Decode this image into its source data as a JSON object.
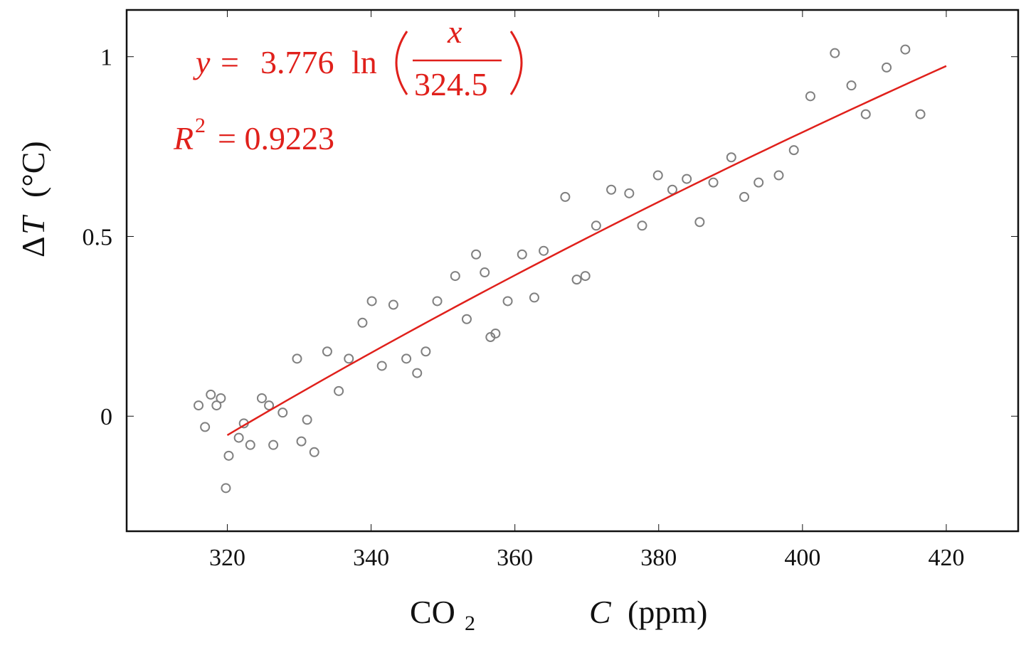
{
  "chart_data": {
    "type": "scatter",
    "xlabel": {
      "pre": "CO",
      "sub": "2",
      "var": "C",
      "unit": "(ppm)"
    },
    "ylabel": {
      "delta": "Δ",
      "var": "T",
      "unit": "(°C)"
    },
    "xlim": [
      306,
      430
    ],
    "ylim": [
      -0.32,
      1.13
    ],
    "xticks": [
      320,
      340,
      360,
      380,
      400,
      420
    ],
    "xtick_labels": [
      "320",
      "340",
      "360",
      "380",
      "400",
      "420"
    ],
    "yticks": [
      0,
      0.5,
      1
    ],
    "ytick_labels": [
      "0",
      "0.5",
      "1"
    ],
    "points": [
      [
        316.0,
        0.03
      ],
      [
        316.9,
        -0.03
      ],
      [
        317.7,
        0.06
      ],
      [
        318.5,
        0.03
      ],
      [
        319.1,
        0.05
      ],
      [
        319.8,
        -0.2
      ],
      [
        320.2,
        -0.11
      ],
      [
        321.6,
        -0.06
      ],
      [
        322.3,
        -0.02
      ],
      [
        323.2,
        -0.08
      ],
      [
        324.8,
        0.05
      ],
      [
        325.8,
        0.03
      ],
      [
        326.4,
        -0.08
      ],
      [
        327.7,
        0.01
      ],
      [
        329.7,
        0.16
      ],
      [
        330.3,
        -0.07
      ],
      [
        331.1,
        -0.01
      ],
      [
        332.1,
        -0.1
      ],
      [
        333.9,
        0.18
      ],
      [
        335.5,
        0.07
      ],
      [
        336.9,
        0.16
      ],
      [
        338.8,
        0.26
      ],
      [
        340.1,
        0.32
      ],
      [
        341.5,
        0.14
      ],
      [
        343.1,
        0.31
      ],
      [
        344.9,
        0.16
      ],
      [
        346.4,
        0.12
      ],
      [
        347.6,
        0.18
      ],
      [
        349.2,
        0.32
      ],
      [
        351.7,
        0.39
      ],
      [
        353.3,
        0.27
      ],
      [
        354.6,
        0.45
      ],
      [
        355.8,
        0.4
      ],
      [
        356.6,
        0.22
      ],
      [
        357.3,
        0.23
      ],
      [
        359.0,
        0.32
      ],
      [
        361.0,
        0.45
      ],
      [
        362.7,
        0.33
      ],
      [
        364.0,
        0.46
      ],
      [
        367.0,
        0.61
      ],
      [
        368.6,
        0.38
      ],
      [
        369.8,
        0.39
      ],
      [
        371.3,
        0.53
      ],
      [
        373.4,
        0.63
      ],
      [
        375.9,
        0.62
      ],
      [
        377.7,
        0.53
      ],
      [
        379.9,
        0.67
      ],
      [
        381.9,
        0.63
      ],
      [
        383.9,
        0.66
      ],
      [
        385.7,
        0.54
      ],
      [
        387.6,
        0.65
      ],
      [
        390.1,
        0.72
      ],
      [
        391.9,
        0.61
      ],
      [
        393.9,
        0.65
      ],
      [
        396.7,
        0.67
      ],
      [
        398.8,
        0.74
      ],
      [
        401.1,
        0.89
      ],
      [
        404.5,
        1.01
      ],
      [
        406.8,
        0.92
      ],
      [
        408.8,
        0.84
      ],
      [
        411.7,
        0.97
      ],
      [
        414.3,
        1.02
      ],
      [
        416.4,
        0.84
      ]
    ],
    "fit": {
      "a": 3.776,
      "b": 324.5,
      "x_from": 320,
      "x_to": 420,
      "color": "#e0201b"
    },
    "equation": {
      "lhs": "y",
      "eq": "=",
      "coef": "3.776",
      "fn": "ln",
      "num": "x",
      "den": "324.5"
    },
    "r2": {
      "var": "R",
      "exp": "2",
      "rest": "= 0.9223"
    },
    "marker_color": "#808080",
    "grid": false
  }
}
